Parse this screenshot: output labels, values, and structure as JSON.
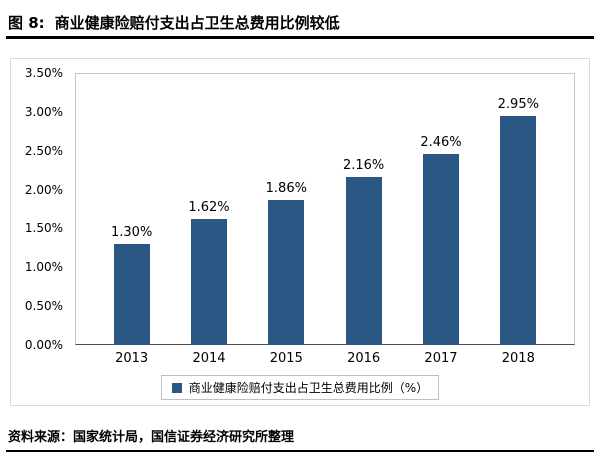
{
  "title": {
    "prefix": "图 8:",
    "text": "商业健康险赔付支出占卫生总费用比例较低"
  },
  "source": "资料来源：国家统计局，国信证券经济研究所整理",
  "colors": {
    "bar": "#2A5784"
  },
  "chart_data": {
    "type": "bar",
    "title": "商业健康险赔付支出占卫生总费用比例较低",
    "categories": [
      "2013",
      "2014",
      "2015",
      "2016",
      "2017",
      "2018"
    ],
    "values": [
      1.3,
      1.62,
      1.86,
      2.16,
      2.46,
      2.95
    ],
    "data_labels": [
      "1.30%",
      "1.62%",
      "1.86%",
      "2.16%",
      "2.46%",
      "2.95%"
    ],
    "legend": "商业健康险赔付支出占卫生总费用比例（%）",
    "xlabel": "",
    "ylabel": "",
    "ylim": [
      0,
      3.5
    ],
    "ytick_step": 0.5,
    "ytick_labels": [
      "0.00%",
      "0.50%",
      "1.00%",
      "1.50%",
      "2.00%",
      "2.50%",
      "3.00%",
      "3.50%"
    ],
    "grid": false,
    "legend_position": "bottom"
  }
}
